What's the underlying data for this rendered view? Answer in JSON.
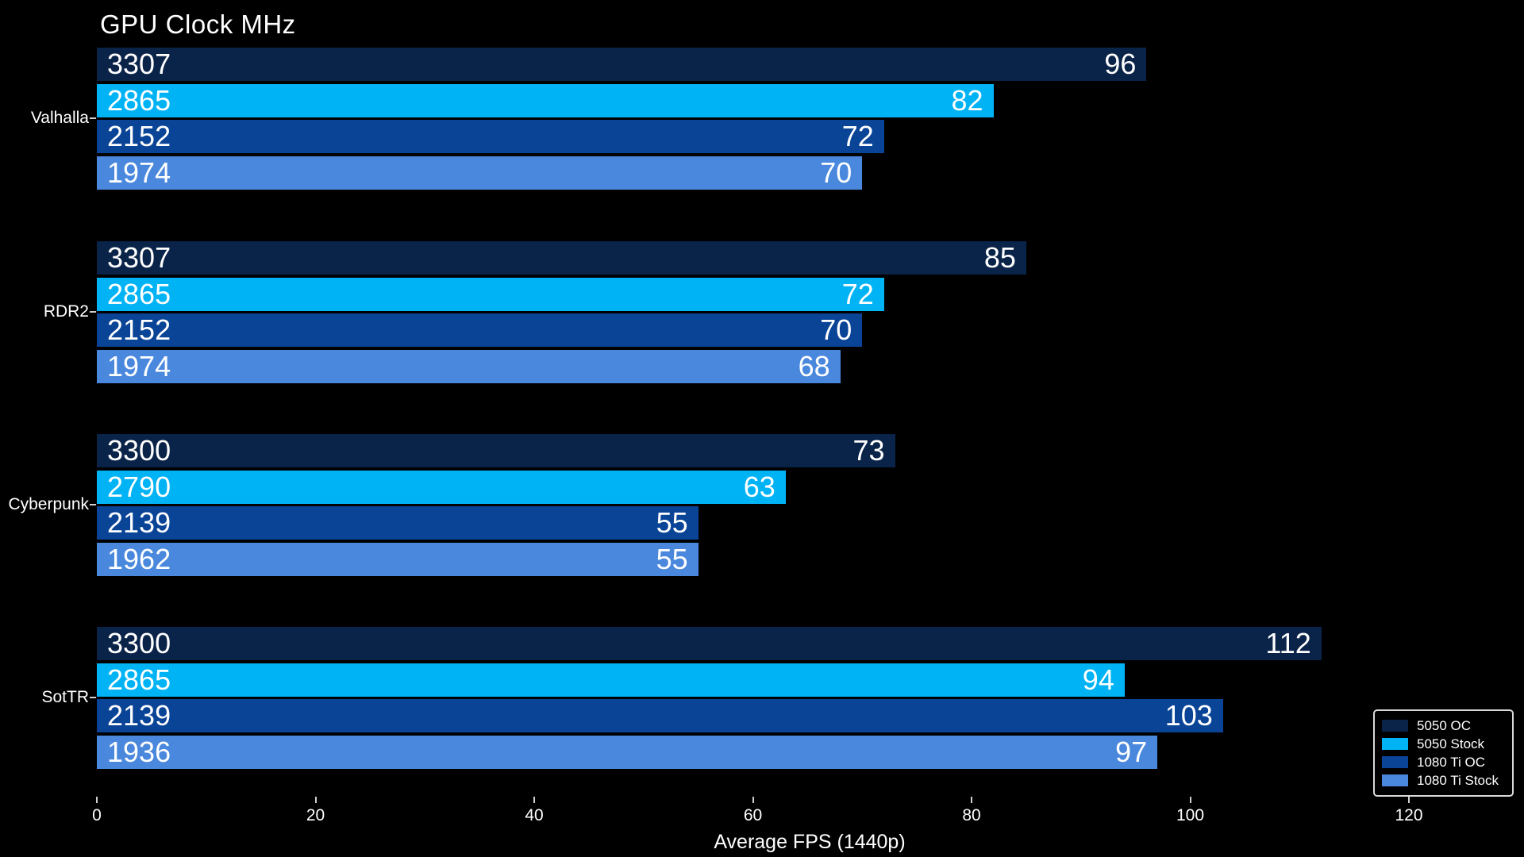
{
  "title": "GPU Clock MHz",
  "colors": {
    "background": "#000000",
    "text": "#ffffff",
    "tick": "#cfcfcf",
    "legend_border": "#d9d9d9",
    "series": {
      "5050_oc": "#0a2348",
      "5050_stock": "#00b3f5",
      "1080ti_oc": "#0a4496",
      "1080ti_stock": "#4a88dd"
    }
  },
  "chart_data": {
    "type": "bar",
    "orientation": "horizontal",
    "title": "GPU Clock MHz",
    "xlabel": "Average FPS (1440p)",
    "ylabel": "",
    "xlim": [
      0,
      130
    ],
    "xticks": [
      0,
      20,
      40,
      60,
      80,
      100,
      120
    ],
    "grid": false,
    "legend_position": "lower right",
    "categories": [
      "Valhalla",
      "RDR2",
      "Cyberpunk",
      "SotTR"
    ],
    "series": [
      {
        "name": "5050 OC",
        "color": "#0a2348",
        "values": [
          96,
          85,
          73,
          112
        ],
        "bar_labels": [
          "3307",
          "3307",
          "3300",
          "3300"
        ]
      },
      {
        "name": "5050 Stock",
        "color": "#00b3f5",
        "values": [
          82,
          72,
          63,
          94
        ],
        "bar_labels": [
          "2865",
          "2865",
          "2790",
          "2865"
        ]
      },
      {
        "name": "1080 Ti OC",
        "color": "#0a4496",
        "values": [
          72,
          70,
          55,
          103
        ],
        "bar_labels": [
          "2152",
          "2152",
          "2139",
          "2139"
        ]
      },
      {
        "name": "1080 Ti Stock",
        "color": "#4a88dd",
        "values": [
          70,
          68,
          55,
          97
        ],
        "bar_labels": [
          "1974",
          "1974",
          "1962",
          "1936"
        ]
      }
    ]
  }
}
